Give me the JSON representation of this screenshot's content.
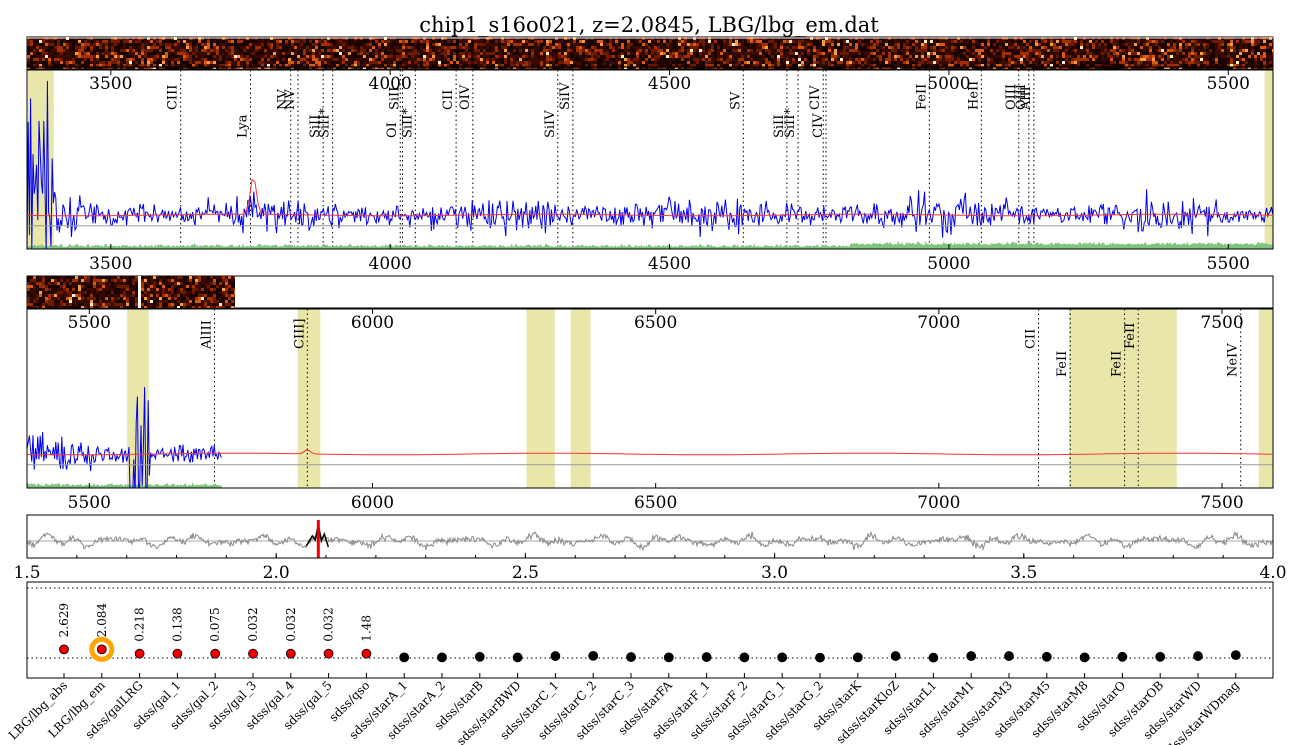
{
  "title": "chip1_s16o021, z=2.0845, LBG/lbg_em.dat",
  "colors": {
    "spectrum": "#0000ee",
    "model": "#ff3333",
    "continuum": "#999999",
    "noise": "#7fc47f",
    "mask": "#e8e6a8",
    "xcorr": "#888888",
    "redshift_marker": "#ee0000",
    "selected_ring": "#ffa500",
    "fit_point": "#ee0000",
    "other_point": "#000000"
  },
  "chart_data": [
    {
      "type": "line",
      "panel": "spectrum-top",
      "x_unit": "wavelength",
      "xlim": [
        3350,
        5580
      ],
      "xticks": [
        3500,
        4000,
        4500,
        5000,
        5500
      ],
      "masked_regions": [
        [
          3352,
          3398
        ],
        [
          5565,
          5580
        ]
      ],
      "emission_lines": [
        {
          "label": "CIII",
          "x": 3625,
          "row": 0
        },
        {
          "label": "Lya",
          "x": 3750,
          "row": 1
        },
        {
          "label": "NV",
          "x": 3822,
          "row": 0
        },
        {
          "label": "NV",
          "x": 3835,
          "row": 0
        },
        {
          "label": "SiII",
          "x": 3880,
          "row": 1
        },
        {
          "label": "SiII*",
          "x": 3897,
          "row": 1
        },
        {
          "label": "OI",
          "x": 4018,
          "row": 1
        },
        {
          "label": "SiII",
          "x": 4022,
          "row": 0
        },
        {
          "label": "SiII*",
          "x": 4045,
          "row": 1
        },
        {
          "label": "CII",
          "x": 4118,
          "row": 0
        },
        {
          "label": "OIV",
          "x": 4148,
          "row": 0
        },
        {
          "label": "SiIV",
          "x": 4300,
          "row": 1
        },
        {
          "label": "SiIV",
          "x": 4327,
          "row": 0
        },
        {
          "label": "SV",
          "x": 4632,
          "row": 0
        },
        {
          "label": "SiII",
          "x": 4710,
          "row": 1
        },
        {
          "label": "SiII*",
          "x": 4730,
          "row": 1
        },
        {
          "label": "CIV",
          "x": 4775,
          "row": 0
        },
        {
          "label": "CIV",
          "x": 4780,
          "row": 1
        },
        {
          "label": "FeII",
          "x": 4965,
          "row": 0
        },
        {
          "label": "HeII",
          "x": 5058,
          "row": 0
        },
        {
          "label": "OIII",
          "x": 5125,
          "row": 0
        },
        {
          "label": "OIII",
          "x": 5143,
          "row": 0
        },
        {
          "label": "AlII",
          "x": 5152,
          "row": 0
        }
      ]
    },
    {
      "type": "line",
      "panel": "spectrum-bottom",
      "x_unit": "wavelength",
      "xlim": [
        5390,
        7590
      ],
      "xticks": [
        5500,
        6000,
        6500,
        7000,
        7500
      ],
      "data_end": 5735,
      "masked_regions": [
        [
          5567,
          5605
        ],
        [
          5868,
          5908
        ],
        [
          6272,
          6322
        ],
        [
          6350,
          6385
        ],
        [
          7230,
          7420
        ],
        [
          7565,
          7590
        ]
      ],
      "emission_lines": [
        {
          "label": "AlIII",
          "x": 5721,
          "row": 0
        },
        {
          "label": "CIII]",
          "x": 5885,
          "row": 0
        },
        {
          "label": "CII",
          "x": 7176,
          "row": 0
        },
        {
          "label": "FeII",
          "x": 7232,
          "row": 1
        },
        {
          "label": "FeII",
          "x": 7328,
          "row": 1
        },
        {
          "label": "FeII",
          "x": 7352,
          "row": 0
        },
        {
          "label": "NeIV",
          "x": 7533,
          "row": 1
        }
      ]
    },
    {
      "type": "line",
      "panel": "cross-correlation",
      "x_unit": "redshift",
      "xlim": [
        1.5,
        4.0
      ],
      "xticks": [
        1.5,
        2.0,
        2.5,
        3.0,
        3.5,
        4.0
      ],
      "xtick_labels": [
        "1.5",
        "2.0",
        "2.5",
        "3.0",
        "3.5",
        "4.0"
      ],
      "redshift": 2.0845
    },
    {
      "type": "scatter",
      "panel": "template-fits",
      "categories": [
        "LBG/lbg_abs",
        "LBG/lbg_em",
        "sdss/galLRG",
        "sdss/gal_1",
        "sdss/gal_2",
        "sdss/gal_3",
        "sdss/gal_4",
        "sdss/gal_5",
        "sdss/qso",
        "sdss/starA_1",
        "sdss/starA_2",
        "sdss/starB",
        "sdss/starBWD",
        "sdss/starC_1",
        "sdss/starC_2",
        "sdss/starC_3",
        "sdss/starFA",
        "sdss/starF_1",
        "sdss/starF_2",
        "sdss/starG_1",
        "sdss/starG_2",
        "sdss/starK",
        "sdss/starKloZ",
        "sdss/starL1",
        "sdss/starM1",
        "sdss/starM3",
        "sdss/starM5",
        "sdss/starM8",
        "sdss/starO",
        "sdss/starOB",
        "sdss/starWD",
        "sdss/starWDmag"
      ],
      "redshift_labels": [
        "2.629",
        "2.084",
        "0.218",
        "0.138",
        "0.075",
        "0.032",
        "0.032",
        "0.032",
        "1.48"
      ],
      "fit_count": 9,
      "selected_index": 1,
      "values": [
        0.72,
        0.72,
        0.36,
        0.36,
        0.36,
        0.36,
        0.36,
        0.36,
        0.36,
        0.05,
        0.05,
        0.1,
        0.05,
        0.16,
        0.18,
        0.08,
        0.05,
        0.08,
        0.05,
        0.05,
        0.03,
        0.05,
        0.16,
        0.03,
        0.16,
        0.16,
        0.1,
        0.05,
        0.1,
        0.1,
        0.16,
        0.24
      ]
    }
  ]
}
